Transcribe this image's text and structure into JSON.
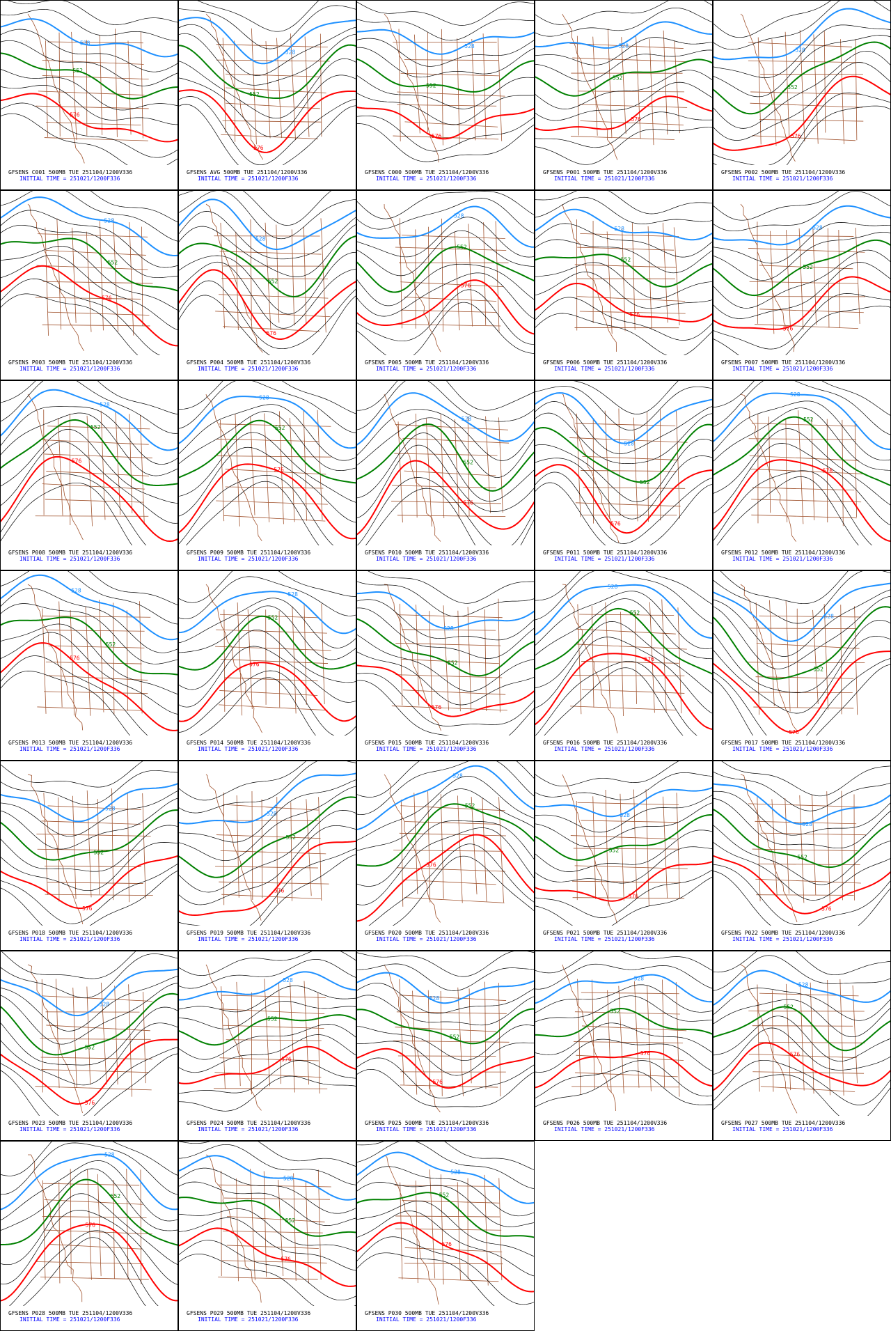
{
  "initial_time": "INITIAL TIME = 251021/1200F336",
  "contour_levels": [
    {
      "level": 528,
      "color": "#1e90ff"
    },
    {
      "level": 552,
      "color": "#008000"
    },
    {
      "level": 576,
      "color": "#ff0000"
    }
  ],
  "panels": [
    "GFSENS C001 500MB TUE 251104/1200V336",
    "GFSENS AVG 500MB TUE 251104/1200V336",
    "GFSENS C000 500MB TUE 251104/1200V336",
    "GFSENS P001 500MB TUE 251104/1200V336",
    "GFSENS P002 500MB TUE 251104/1200V336",
    "GFSENS P003 500MB TUE 251104/1200V336",
    "GFSENS P004 500MB TUE 251104/1200V336",
    "GFSENS P005 500MB TUE 251104/1200V336",
    "GFSENS P006 500MB TUE 251104/1200V336",
    "GFSENS P007 500MB TUE 251104/1200V336",
    "GFSENS P008 500MB TUE 251104/1200V336",
    "GFSENS P009 500MB TUE 251104/1200V336",
    "GFSENS P010 500MB TUE 251104/1200V336",
    "GFSENS P011 500MB TUE 251104/1200V336",
    "GFSENS P012 500MB TUE 251104/1200V336",
    "GFSENS P013 500MB TUE 251104/1200V336",
    "GFSENS P014 500MB TUE 251104/1200V336",
    "GFSENS P015 500MB TUE 251104/1200V336",
    "GFSENS P016 500MB TUE 251104/1200V336",
    "GFSENS P017 500MB TUE 251104/1200V336",
    "GFSENS P018 500MB TUE 251104/1200V336",
    "GFSENS P019 500MB TUE 251104/1200V336",
    "GFSENS P020 500MB TUE 251104/1200V336",
    "GFSENS P021 500MB TUE 251104/1200V336",
    "GFSENS P022 500MB TUE 251104/1200V336",
    "GFSENS P023 500MB TUE 251104/1200V336",
    "GFSENS P024 500MB TUE 251104/1200V336",
    "GFSENS P025 500MB TUE 251104/1200V336",
    "GFSENS P026 500MB TUE 251104/1200V336",
    "GFSENS P027 500MB TUE 251104/1200V336",
    "GFSENS P028 500MB TUE 251104/1200V336",
    "GFSENS P029 500MB TUE 251104/1200V336",
    "GFSENS P030 500MB TUE 251104/1200V336"
  ]
}
